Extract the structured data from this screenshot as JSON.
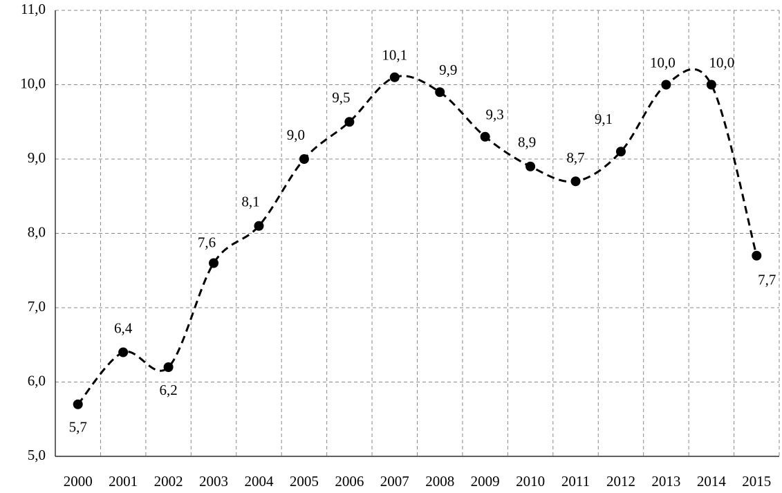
{
  "chart_data": {
    "type": "line",
    "categories": [
      "2000",
      "2001",
      "2002",
      "2003",
      "2004",
      "2005",
      "2006",
      "2007",
      "2008",
      "2009",
      "2010",
      "2011",
      "2012",
      "2013",
      "2014",
      "2015"
    ],
    "values": [
      5.7,
      6.4,
      6.2,
      7.6,
      8.1,
      9.0,
      9.5,
      10.1,
      9.9,
      9.3,
      8.9,
      8.7,
      9.1,
      10.0,
      10.0,
      7.7
    ],
    "value_labels": [
      "5,7",
      "6,4",
      "6,2",
      "7,6",
      "8,1",
      "9,0",
      "9,5",
      "10,1",
      "9,9",
      "9,3",
      "8,9",
      "8,7",
      "9,1",
      "10,0",
      "10,0",
      "7,7"
    ],
    "color": "#000000",
    "ylim": [
      5,
      11
    ],
    "yticks": [
      {
        "value": 5,
        "label": "5,0"
      },
      {
        "value": 6,
        "label": "6,0"
      },
      {
        "value": 7,
        "label": "7,0"
      },
      {
        "value": 8,
        "label": "8,0"
      },
      {
        "value": 9,
        "label": "9,0"
      },
      {
        "value": 10,
        "label": "10,0"
      },
      {
        "value": 11,
        "label": "11,0"
      }
    ],
    "grid": true
  }
}
